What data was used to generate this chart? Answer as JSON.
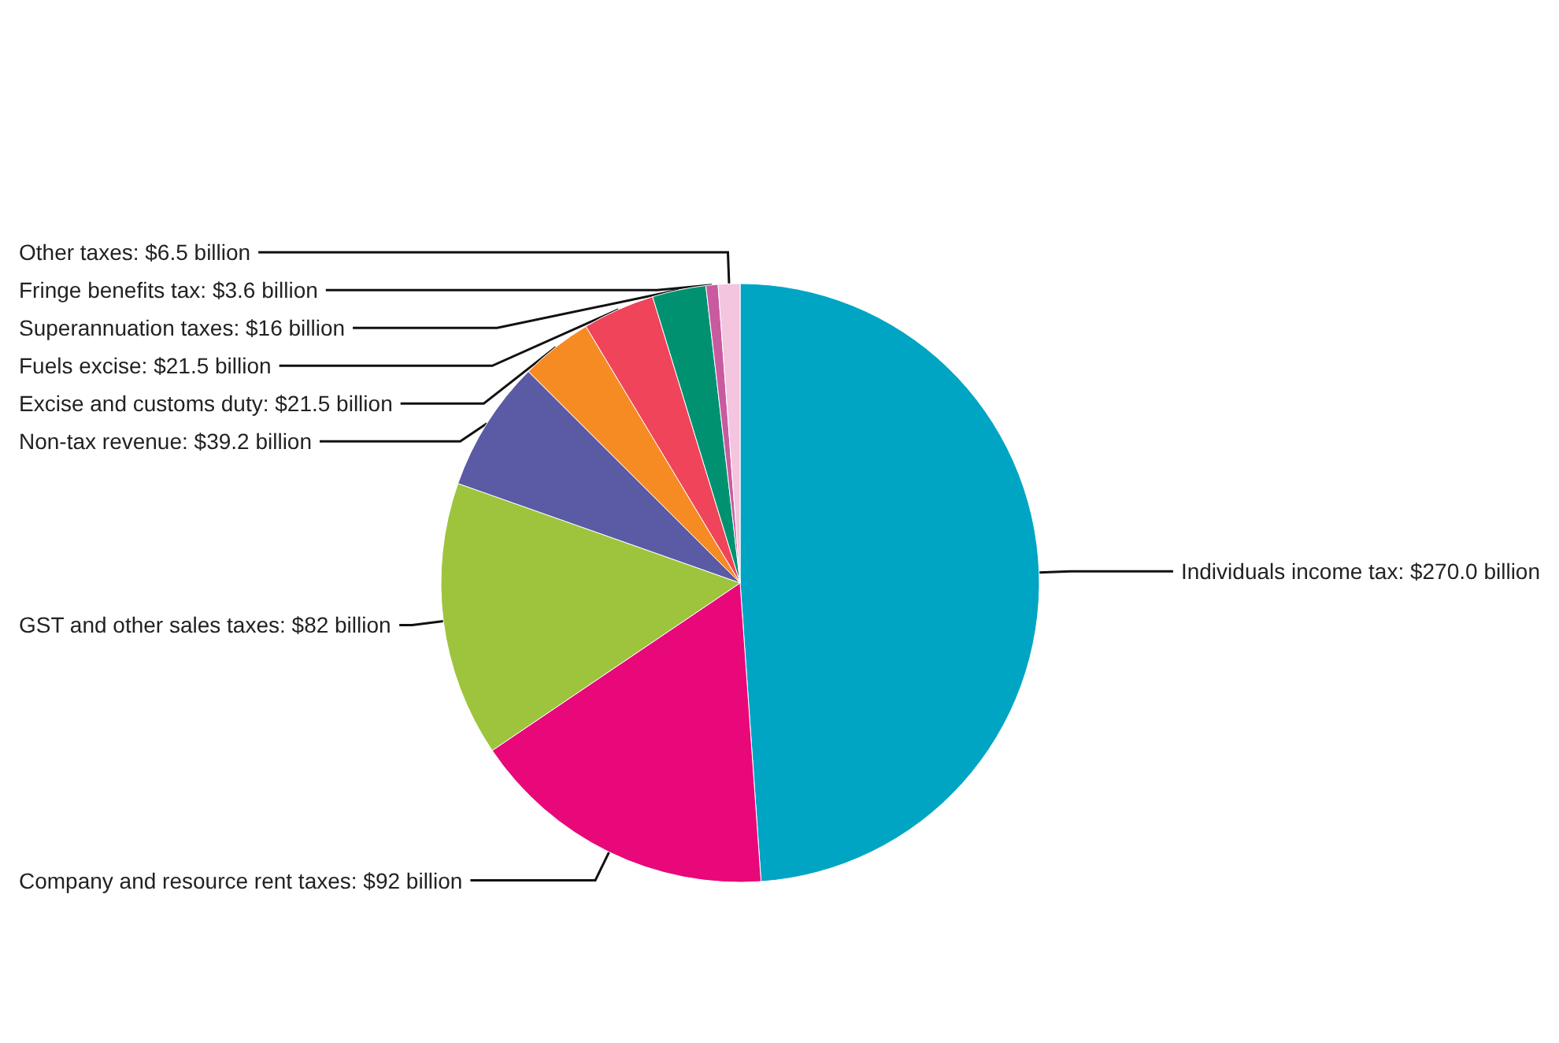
{
  "chart_data": {
    "type": "pie",
    "categories": [
      "Individuals income tax",
      "Company and resource rent taxes",
      "GST and other sales taxes",
      "Non-tax revenue",
      "Excise and customs duty",
      "Fuels excise",
      "Superannuation taxes",
      "Fringe benefits tax",
      "Other taxes"
    ],
    "values": [
      270.0,
      92,
      82,
      39.2,
      21.5,
      21.5,
      16,
      3.6,
      6.5
    ],
    "value_labels": [
      "$270.0 billion",
      "$92 billion",
      "$82 billion",
      "$39.2 billion",
      "$21.5 billion",
      "$21.5 billion",
      "$16 billion",
      "$3.6 billion",
      "$6.5 billion"
    ],
    "colors": [
      "#00a5c4",
      "#e8087a",
      "#9dc43c",
      "#5a5aa5",
      "#f68b24",
      "#ef4459",
      "#009270",
      "#c85aa0",
      "#f3c5de"
    ],
    "legend": false
  }
}
